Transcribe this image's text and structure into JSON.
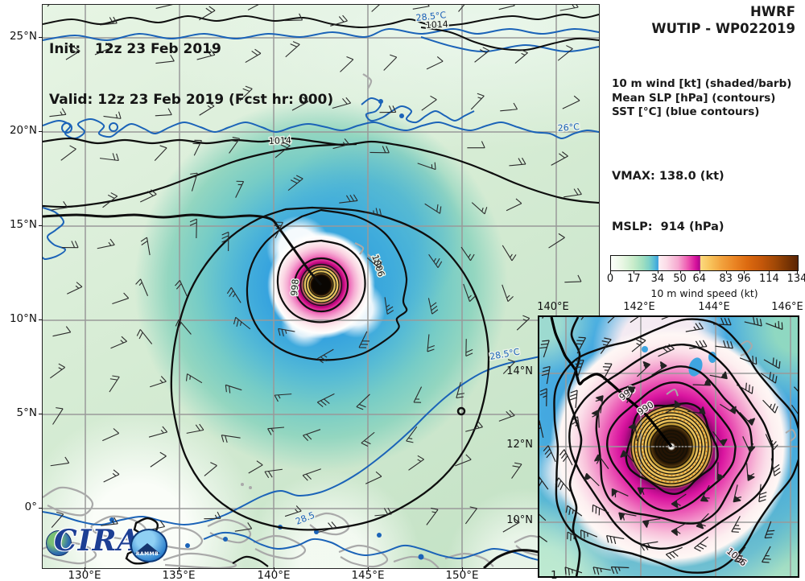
{
  "header": {
    "model": "HWRF",
    "storm": "WUTIP - WP022019"
  },
  "titles": {
    "init": "Init:   12z 23 Feb 2019",
    "valid": "Valid: 12z 23 Feb 2019 (Fcst hr: 000)"
  },
  "legend": {
    "line1": "10 m wind [kt] (shaded/barb)",
    "line2": "Mean SLP [hPa] (contours)",
    "line3": "SST [°C] (blue contours)"
  },
  "stats": {
    "vmax": "VMAX: 138.0 (kt)",
    "mslp": "MSLP:  914 (hPa)"
  },
  "colorbar": {
    "title": "10 m wind speed (kt)",
    "ticks": [
      0,
      17,
      34,
      50,
      64,
      83,
      96,
      114,
      134
    ],
    "min": 0,
    "max": 134,
    "segment_colors": {
      "calm": "#fdfffc",
      "green_17": "#a9dcb8",
      "blue_34": "#3aa0dc",
      "pink_35": "#fdf0f4",
      "pink_50": "#ee5ab2",
      "magenta_64": "#a9088c",
      "gold_65": "#fbda80",
      "orange_96": "#dc6a10",
      "brown_134": "#5a2404"
    }
  },
  "main_map": {
    "x_ticks": [
      "130°E",
      "135°E",
      "140°E",
      "145°E",
      "150°E"
    ],
    "x_tick_partial": "1",
    "y_ticks": [
      "25°N",
      "20°N",
      "15°N",
      "10°N",
      "5°N",
      "0°"
    ],
    "contour_labels": [
      {
        "text": "1014"
      },
      {
        "text": "1014"
      },
      {
        "text": "1006"
      },
      {
        "text": "998"
      }
    ],
    "sst_labels": [
      {
        "text": "28.5°C"
      },
      {
        "text": "26°C"
      },
      {
        "text": "28.5°C"
      },
      {
        "text": "28.5"
      }
    ]
  },
  "inset_map": {
    "x_ticks": [
      "140°E",
      "142°E",
      "144°E",
      "146°E"
    ],
    "y_ticks": [
      "14°N",
      "12°N",
      "10°N"
    ],
    "contour_labels": [
      {
        "text": "998"
      },
      {
        "text": "990"
      },
      {
        "text": "1006"
      }
    ]
  },
  "logo": {
    "cira": "CIRA",
    "rammb": "RAMMB"
  }
}
